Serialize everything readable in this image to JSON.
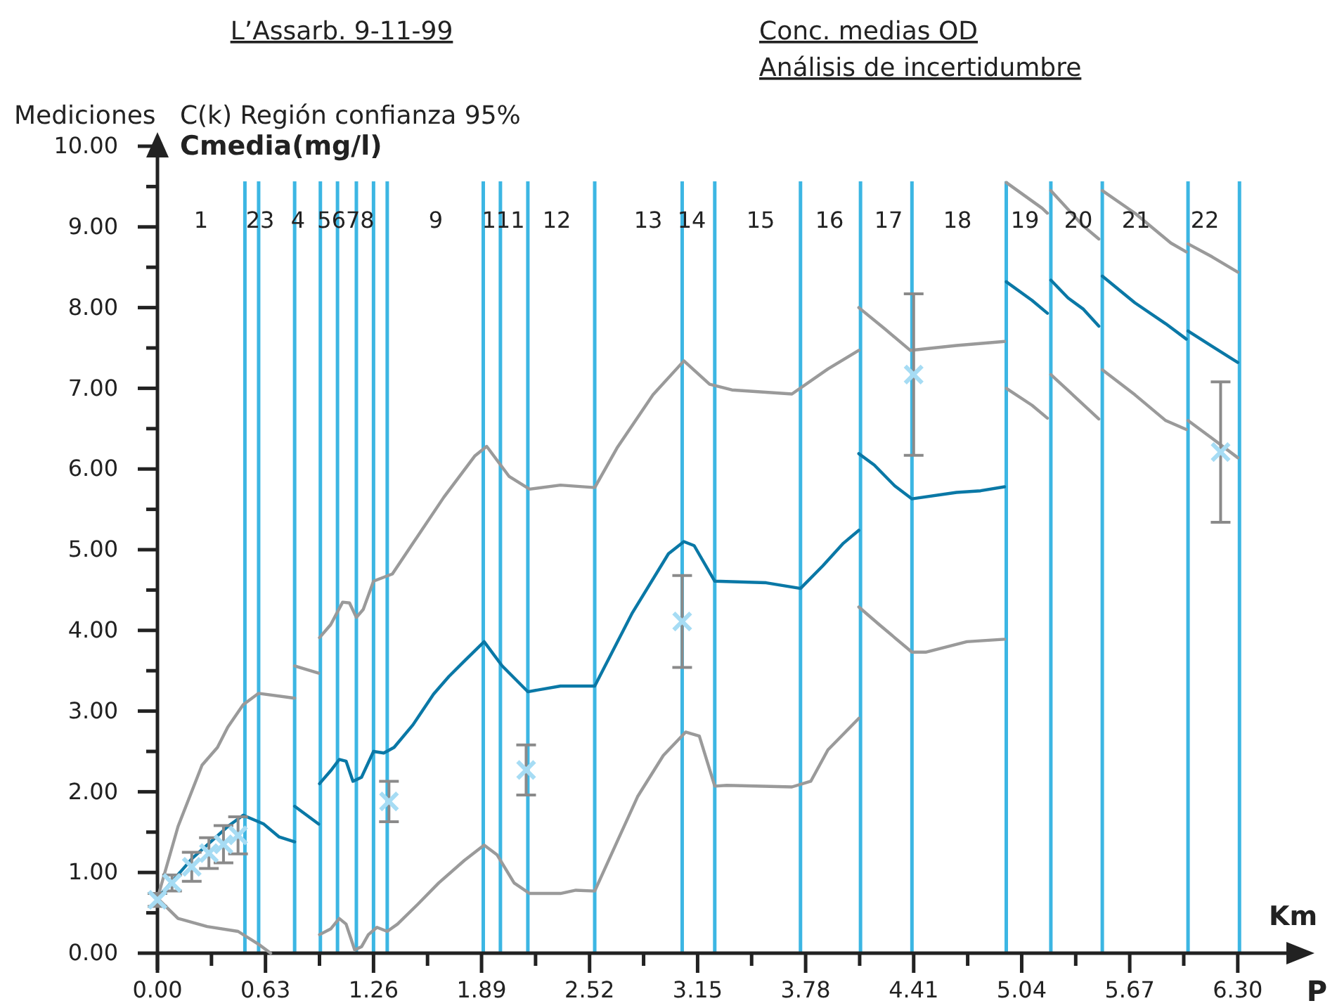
{
  "chart_data": {
    "type": "line",
    "title": "L’Assarb. 9-11-99",
    "subtitle": "Conc. medias OD\nAnálisis de incertidumbre",
    "ylabel": "Cmedia(mg/l)",
    "xlabel": "Km",
    "annotations": [
      "Mediciones   C(k) Región confianza 95%",
      "P",
      "1",
      "23",
      "4",
      "5678",
      "9",
      "111",
      "12",
      "13",
      "14",
      "15",
      "16",
      "17",
      "18",
      "19",
      "20",
      "21",
      "22"
    ],
    "xlim": [
      0,
      6.6
    ],
    "ylim": [
      0,
      10
    ],
    "xticks": [
      {
        "value": 0,
        "label": "0.00"
      },
      {
        "value": 0.315,
        "label": null
      },
      {
        "value": 0.63,
        "label": "0.63"
      },
      {
        "value": 0.945,
        "label": null
      },
      {
        "value": 1.26,
        "label": "1.26"
      },
      {
        "value": 1.575,
        "label": null
      },
      {
        "value": 1.89,
        "label": "1.89"
      },
      {
        "value": 2.205,
        "label": null
      },
      {
        "value": 2.52,
        "label": "2.52"
      },
      {
        "value": 2.835,
        "label": null
      },
      {
        "value": 3.15,
        "label": "3.15"
      },
      {
        "value": 3.465,
        "label": null
      },
      {
        "value": 3.78,
        "label": "3.78"
      },
      {
        "value": 4.095,
        "label": null
      },
      {
        "value": 4.41,
        "label": "4.41"
      },
      {
        "value": 4.725,
        "label": null
      },
      {
        "value": 5.04,
        "label": "5.04"
      },
      {
        "value": 5.355,
        "label": null
      },
      {
        "value": 5.67,
        "label": "5.67"
      },
      {
        "value": 5.985,
        "label": null
      },
      {
        "value": 6.3,
        "label": "6.30"
      }
    ],
    "yticks": [
      {
        "value": 0,
        "label": "0.00"
      },
      {
        "value": 0.5,
        "label": null
      },
      {
        "value": 1,
        "label": "1.00"
      },
      {
        "value": 1.5,
        "label": null
      },
      {
        "value": 2,
        "label": "2.00"
      },
      {
        "value": 2.5,
        "label": null
      },
      {
        "value": 3,
        "label": "3.00"
      },
      {
        "value": 3.5,
        "label": null
      },
      {
        "value": 4,
        "label": "4.00"
      },
      {
        "value": 4.5,
        "label": null
      },
      {
        "value": 5,
        "label": "5.00"
      },
      {
        "value": 5.5,
        "label": null
      },
      {
        "value": 6,
        "label": "6.00"
      },
      {
        "value": 6.5,
        "label": null
      },
      {
        "value": 7,
        "label": "7.00"
      },
      {
        "value": 7.5,
        "label": null
      },
      {
        "value": 8,
        "label": "8.00"
      },
      {
        "value": 8.5,
        "label": null
      },
      {
        "value": 9,
        "label": "9.00"
      },
      {
        "value": 9.5,
        "label": null
      },
      {
        "value": 10,
        "label": "10.00"
      }
    ],
    "grid": false,
    "line_style": "solid",
    "ref_lines": [
      {
        "axis": "x",
        "value": 0.51,
        "color": "#3cb6e3"
      },
      {
        "axis": "x",
        "value": 0.59,
        "color": "#3cb6e3"
      },
      {
        "axis": "x",
        "value": 0.8,
        "color": "#3cb6e3"
      },
      {
        "axis": "x",
        "value": 0.95,
        "color": "#3cb6e3"
      },
      {
        "axis": "x",
        "value": 1.05,
        "color": "#3cb6e3"
      },
      {
        "axis": "x",
        "value": 1.16,
        "color": "#3cb6e3"
      },
      {
        "axis": "x",
        "value": 1.26,
        "color": "#3cb6e3"
      },
      {
        "axis": "x",
        "value": 1.34,
        "color": "#3cb6e3"
      },
      {
        "axis": "x",
        "value": 1.9,
        "color": "#3cb6e3"
      },
      {
        "axis": "x",
        "value": 2.0,
        "color": "#3cb6e3"
      },
      {
        "axis": "x",
        "value": 2.16,
        "color": "#3cb6e3"
      },
      {
        "axis": "x",
        "value": 2.55,
        "color": "#3cb6e3"
      },
      {
        "axis": "x",
        "value": 3.06,
        "color": "#3cb6e3"
      },
      {
        "axis": "x",
        "value": 3.25,
        "color": "#3cb6e3"
      },
      {
        "axis": "x",
        "value": 3.75,
        "color": "#3cb6e3"
      },
      {
        "axis": "x",
        "value": 4.1,
        "color": "#3cb6e3"
      },
      {
        "axis": "x",
        "value": 4.4,
        "color": "#3cb6e3"
      },
      {
        "axis": "x",
        "value": 4.95,
        "color": "#3cb6e3"
      },
      {
        "axis": "x",
        "value": 5.21,
        "color": "#3cb6e3"
      },
      {
        "axis": "x",
        "value": 5.51,
        "color": "#3cb6e3"
      },
      {
        "axis": "x",
        "value": 6.01,
        "color": "#3cb6e3"
      },
      {
        "axis": "x",
        "value": 6.31,
        "color": "#3cb6e3"
      }
    ],
    "series": [
      {
        "color": "#0a78a6",
        "x": [
          0,
          0.205,
          0.41,
          0.5,
          0.62,
          0.71,
          0.8,
          null,
          0.8,
          0.94,
          null,
          0.945,
          1.01,
          1.06,
          1.1,
          1.14,
          1.19,
          1.26,
          1.32,
          1.38,
          1.49,
          1.61,
          1.7,
          1.79,
          1.905,
          2.01,
          2.16,
          2.35,
          2.55,
          2.77,
          2.98,
          3.07,
          3.13,
          3.25,
          3.55,
          3.75,
          3.88,
          4.0,
          4.09,
          null,
          4.09,
          4.18,
          4.3,
          4.4,
          4.66,
          4.8,
          4.94,
          null,
          4.95,
          5.1,
          5.19,
          null,
          5.21,
          5.31,
          5.4,
          5.49,
          null,
          5.51,
          5.7,
          5.88,
          6.0,
          null,
          6.01,
          6.15,
          6.3
        ],
        "values": [
          0.68,
          1.18,
          1.57,
          1.71,
          1.6,
          1.44,
          1.38,
          null,
          1.82,
          1.6,
          null,
          2.1,
          2.26,
          2.4,
          2.38,
          2.13,
          2.18,
          2.5,
          2.48,
          2.55,
          2.83,
          3.21,
          3.43,
          3.62,
          3.86,
          3.56,
          3.24,
          3.31,
          3.31,
          4.22,
          4.95,
          5.1,
          5.05,
          4.61,
          4.59,
          4.52,
          4.8,
          5.08,
          5.24,
          null,
          6.19,
          6.05,
          5.79,
          5.63,
          5.71,
          5.73,
          5.78,
          null,
          8.32,
          8.09,
          7.93,
          null,
          8.34,
          8.12,
          7.98,
          7.77,
          null,
          8.39,
          8.06,
          7.8,
          7.61,
          null,
          7.71,
          7.52,
          7.32
        ]
      },
      {
        "color": "#9a9a9a",
        "x": [
          0,
          0.12,
          0.26,
          0.35,
          0.41,
          0.5,
          0.59,
          0.8,
          null,
          0.8,
          0.94,
          null,
          0.945,
          1.01,
          1.08,
          1.12,
          1.16,
          1.2,
          1.26,
          1.37,
          1.49,
          1.67,
          1.85,
          1.92,
          2.05,
          2.17,
          2.35,
          2.55,
          2.68,
          2.89,
          3.07,
          3.22,
          3.35,
          3.7,
          3.91,
          4.09,
          null,
          4.09,
          4.24,
          4.39,
          4.66,
          4.94,
          null,
          4.95,
          5.16,
          5.19,
          null,
          5.21,
          5.4,
          5.49,
          null,
          5.51,
          5.7,
          5.91,
          6.0,
          null,
          6.01,
          6.15,
          6.3
        ],
        "values": [
          0.68,
          1.57,
          2.33,
          2.55,
          2.8,
          3.08,
          3.22,
          3.16,
          null,
          3.56,
          3.47,
          null,
          3.91,
          4.07,
          4.35,
          4.34,
          4.16,
          4.26,
          4.61,
          4.7,
          5.08,
          5.65,
          6.16,
          6.28,
          5.91,
          5.75,
          5.8,
          5.77,
          6.26,
          6.92,
          7.34,
          7.05,
          6.98,
          6.93,
          7.24,
          7.47,
          null,
          8.0,
          7.74,
          7.47,
          7.53,
          7.58,
          null,
          9.55,
          9.23,
          9.17,
          null,
          9.45,
          9.01,
          8.85,
          null,
          9.45,
          9.17,
          8.8,
          8.69,
          null,
          8.79,
          8.63,
          8.44
        ]
      },
      {
        "color": "#9a9a9a",
        "x": [
          0,
          0.12,
          0.29,
          0.47,
          0.59,
          0.66,
          null,
          0.945,
          1.01,
          1.06,
          1.1,
          1.13,
          1.15,
          1.19,
          1.23,
          1.28,
          1.34,
          1.4,
          1.52,
          1.64,
          1.79,
          1.905,
          1.98,
          2.08,
          2.17,
          2.35,
          2.44,
          2.55,
          2.68,
          2.8,
          2.95,
          3.08,
          3.16,
          3.25,
          3.32,
          3.7,
          3.81,
          3.91,
          4.09,
          null,
          4.09,
          4.21,
          4.4,
          4.48,
          4.72,
          4.94,
          null,
          4.95,
          5.1,
          5.19,
          null,
          5.21,
          5.49,
          null,
          5.51,
          5.7,
          5.88,
          6.0,
          null,
          6.01,
          6.15,
          6.3
        ],
        "values": [
          0.68,
          0.43,
          0.33,
          0.27,
          0.11,
          0,
          null,
          0.23,
          0.3,
          0.43,
          0.36,
          0.17,
          0.04,
          0.08,
          0.23,
          0.32,
          0.27,
          0.36,
          0.61,
          0.87,
          1.15,
          1.34,
          1.22,
          0.87,
          0.74,
          0.74,
          0.78,
          0.77,
          1.38,
          1.94,
          2.45,
          2.74,
          2.69,
          2.07,
          2.08,
          2.06,
          2.13,
          2.52,
          2.91,
          null,
          4.29,
          4.07,
          3.73,
          3.73,
          3.86,
          3.89,
          null,
          7.0,
          6.79,
          6.63,
          null,
          7.17,
          6.62,
          null,
          7.23,
          6.92,
          6.6,
          6.49,
          null,
          6.6,
          6.38,
          6.14
        ]
      },
      {
        "type": "scatter",
        "marker": "cross",
        "color": "#a6dcf4",
        "x": [
          0,
          0.085,
          0.2,
          0.3,
          0.385,
          0.47,
          1.35,
          2.15,
          3.06,
          4.41,
          6.2
        ],
        "values": [
          0.66,
          0.87,
          1.07,
          1.24,
          1.35,
          1.46,
          1.88,
          2.27,
          4.11,
          7.17,
          6.21
        ],
        "errors": [
          0.08,
          0.1,
          0.18,
          0.19,
          0.23,
          0.23,
          0.25,
          0.31,
          0.57,
          1.0,
          0.87
        ]
      }
    ]
  }
}
